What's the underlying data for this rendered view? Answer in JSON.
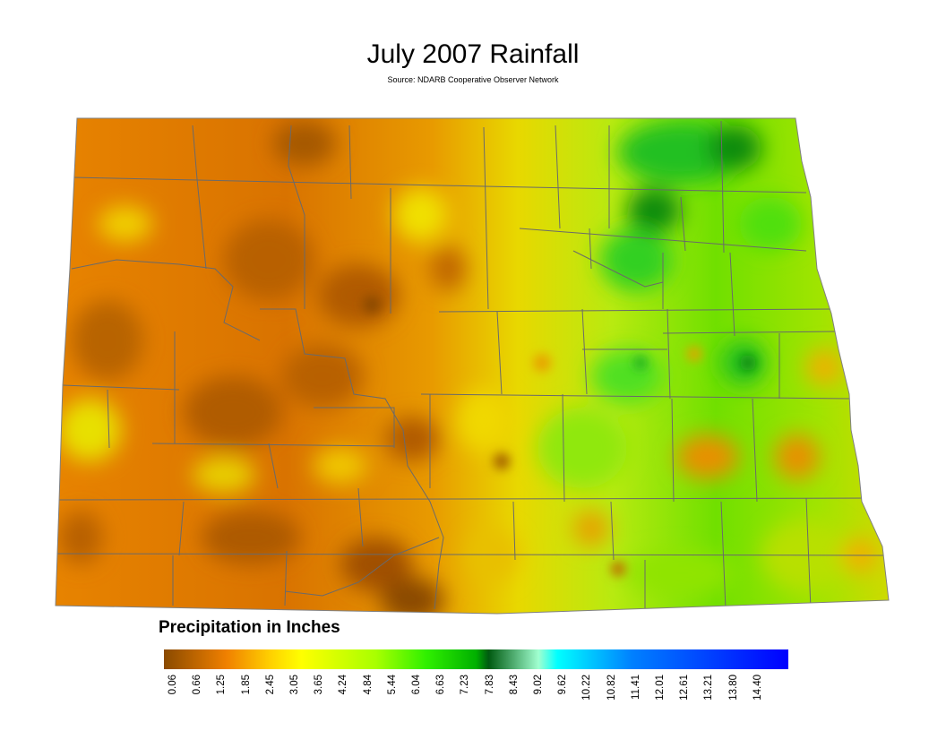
{
  "title": "July 2007 Rainfall",
  "subtitle": "Source: NDARB Cooperative Observer Network",
  "legend": {
    "title": "Precipitation in Inches",
    "ticks": [
      "0.06",
      "0.66",
      "1.25",
      "1.85",
      "2.45",
      "3.05",
      "3.65",
      "4.24",
      "4.84",
      "5.44",
      "6.04",
      "6.63",
      "7.23",
      "7.83",
      "8.43",
      "9.02",
      "9.62",
      "10.22",
      "10.82",
      "11.41",
      "12.01",
      "12.61",
      "13.21",
      "13.80",
      "14.40"
    ],
    "colors": [
      "#9a4f00",
      "#e07a00",
      "#f7b800",
      "#ffff00",
      "#b8ff00",
      "#00ee00",
      "#008a20",
      "#00ffff",
      "#0080ff",
      "#0000ff"
    ]
  },
  "colors": {
    "dry": "#d06a00",
    "orange": "#f09000",
    "yellow": "#f0e000",
    "green": "#70e000",
    "dark_green": "#0a8a10",
    "county_line": "#6a6a6a"
  }
}
